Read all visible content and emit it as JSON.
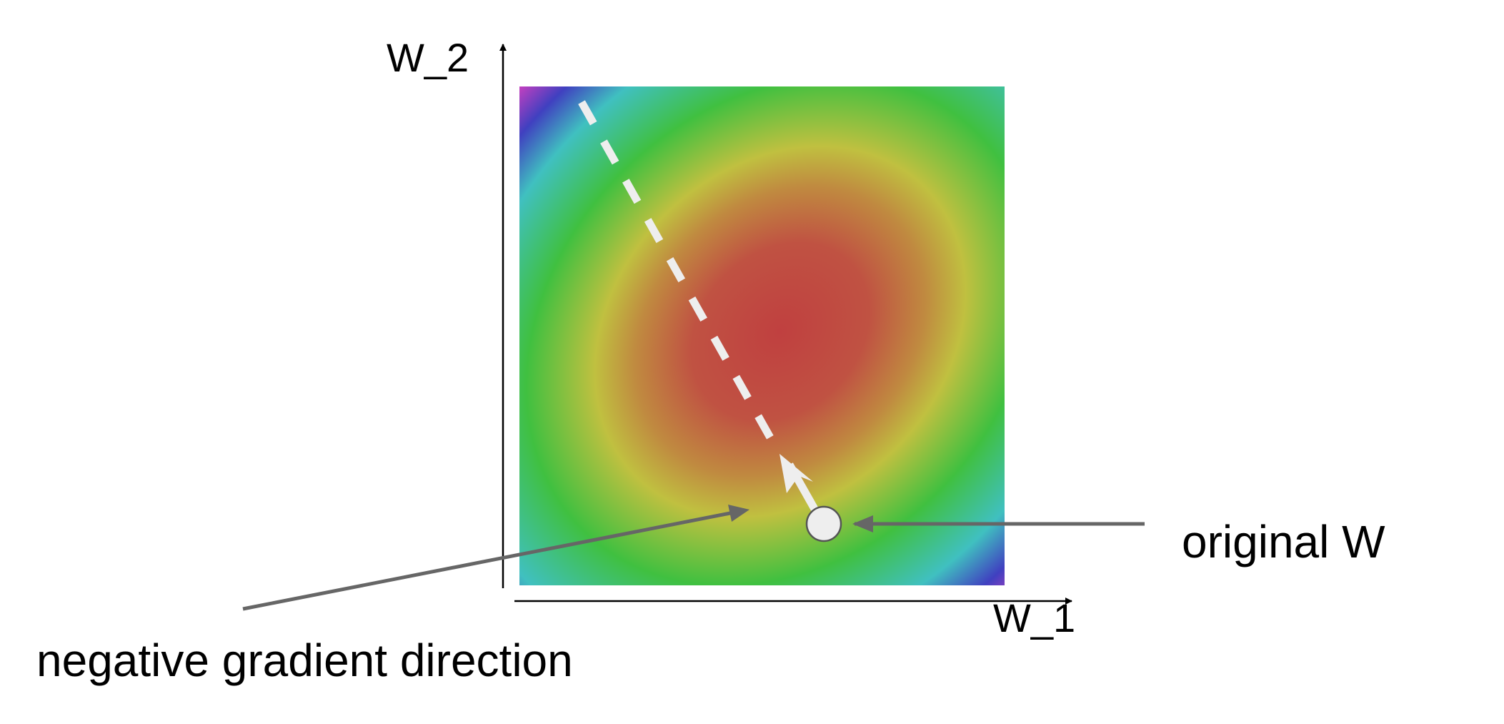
{
  "axes": {
    "y_label": "W_2",
    "x_label": "W_1"
  },
  "annotations": {
    "original_point_label": "original W",
    "gradient_label": "negative gradient direction"
  },
  "colors": {
    "loss_surface_stops": [
      "#c04040",
      "#c05c40",
      "#c08c40",
      "#c0c040",
      "#40c040",
      "#40c0c0",
      "#4040c0",
      "#c040c0"
    ],
    "annotation_arrow": "#666666",
    "path_and_point": "#eeeeee"
  }
}
